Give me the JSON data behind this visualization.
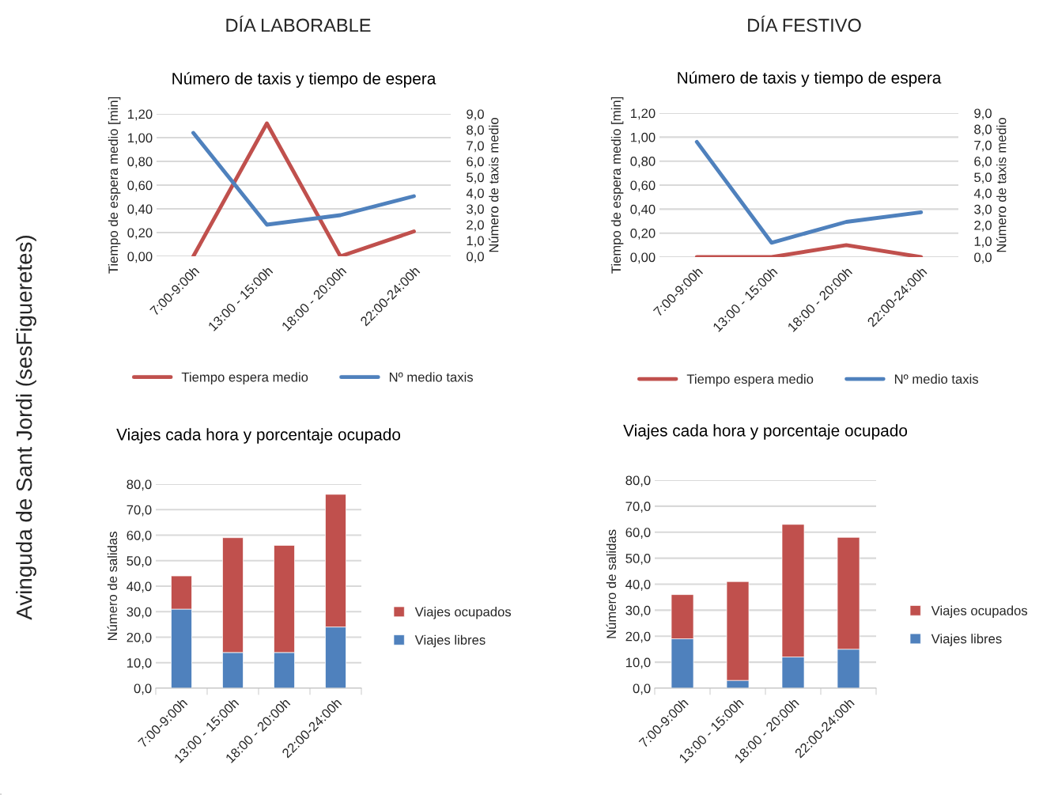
{
  "chart_data": [
    {
      "type": "line",
      "title": "Número de taxis y tiempo de espera",
      "ylabel": "Tiempo de espera medio [min]",
      "y2label": "Número de taxis medio",
      "annotations": [
        "DÍA LABORABLE",
        "Avinguda de Sant Jordi (sesFigueretes)"
      ],
      "categories": [
        "7:00-9:00h",
        "13:00 - 15:00h",
        "18:00 - 20:00h",
        "22:00-24:00h"
      ],
      "series": [
        {
          "name": "Tiempo espera medio",
          "color": "#c0504d",
          "values": [
            0,
            1.12,
            0,
            0.21
          ]
        },
        {
          "name": "Nº medio taxis",
          "color": "#4f81bd",
          "axis": "y2",
          "values": [
            7.8,
            2.0,
            2.6,
            3.8
          ]
        }
      ],
      "ylim": [
        0,
        1.2
      ],
      "yticks": [
        {
          "value": 0,
          "label": "0,00"
        },
        {
          "value": 0.2,
          "label": "0,20"
        },
        {
          "value": 0.4,
          "label": "0,40"
        },
        {
          "value": 0.6,
          "label": "0,60"
        },
        {
          "value": 0.8,
          "label": "0,80"
        },
        {
          "value": 1.0,
          "label": "1,00"
        },
        {
          "value": 1.2,
          "label": "1,20"
        }
      ],
      "y2lim": [
        0,
        9
      ],
      "y2ticks": [
        {
          "value": 0,
          "label": "0,0"
        },
        {
          "value": 1,
          "label": "1,0"
        },
        {
          "value": 2,
          "label": "2,0"
        },
        {
          "value": 3,
          "label": "3,0"
        },
        {
          "value": 4,
          "label": "4,0"
        },
        {
          "value": 5,
          "label": "5,0"
        },
        {
          "value": 6,
          "label": "6,0"
        },
        {
          "value": 7,
          "label": "7,0"
        },
        {
          "value": 8,
          "label": "8,0"
        },
        {
          "value": 9,
          "label": "9,0"
        }
      ],
      "grid": "y",
      "legend": "bottom",
      "line_style": "solid"
    },
    {
      "type": "line",
      "title": "Número de taxis y tiempo de espera",
      "ylabel": "Tiempo de espera medio [min]",
      "y2label": "Número de taxis medio",
      "annotations": [
        "DÍA FESTIVO"
      ],
      "categories": [
        "7:00-9:00h",
        "13:00 - 15:00h",
        "18:00 - 20:00h",
        "22:00-24:00h"
      ],
      "series": [
        {
          "name": "Tiempo espera medio",
          "color": "#c0504d",
          "values": [
            0,
            0,
            0.1,
            0
          ]
        },
        {
          "name": "Nº medio taxis",
          "color": "#4f81bd",
          "axis": "y2",
          "values": [
            7.2,
            0.9,
            2.2,
            2.8
          ]
        }
      ],
      "ylim": [
        0,
        1.2
      ],
      "yticks": [
        {
          "value": 0,
          "label": "0,00"
        },
        {
          "value": 0.2,
          "label": "0,20"
        },
        {
          "value": 0.4,
          "label": "0,40"
        },
        {
          "value": 0.6,
          "label": "0,60"
        },
        {
          "value": 0.8,
          "label": "0,80"
        },
        {
          "value": 1.0,
          "label": "1,00"
        },
        {
          "value": 1.2,
          "label": "1,20"
        }
      ],
      "y2lim": [
        0,
        9
      ],
      "y2ticks": [
        {
          "value": 0,
          "label": "0,0"
        },
        {
          "value": 1,
          "label": "1,0"
        },
        {
          "value": 2,
          "label": "2,0"
        },
        {
          "value": 3,
          "label": "3,0"
        },
        {
          "value": 4,
          "label": "4,0"
        },
        {
          "value": 5,
          "label": "5,0"
        },
        {
          "value": 6,
          "label": "6,0"
        },
        {
          "value": 7,
          "label": "7,0"
        },
        {
          "value": 8,
          "label": "8,0"
        },
        {
          "value": 9,
          "label": "9,0"
        }
      ],
      "grid": "y",
      "legend": "bottom",
      "line_style": "solid"
    },
    {
      "type": "bar",
      "stacked": true,
      "title": "Viajes cada hora y porcentaje ocupado",
      "ylabel": "Número de salidas",
      "categories": [
        "7:00-9:00h",
        "13:00 - 15:00h",
        "18:00 - 20:00h",
        "22:00-24:00h"
      ],
      "series": [
        {
          "name": "Viajes libres",
          "color": "#4f81bd",
          "values": [
            31,
            14,
            14,
            24
          ]
        },
        {
          "name": "Viajes ocupados",
          "color": "#c0504d",
          "values": [
            13,
            45,
            42,
            52
          ]
        }
      ],
      "ylim": [
        0,
        80
      ],
      "yticks": [
        {
          "value": 0,
          "label": "0,0"
        },
        {
          "value": 10,
          "label": "10,0"
        },
        {
          "value": 20,
          "label": "20,0"
        },
        {
          "value": 30,
          "label": "30,0"
        },
        {
          "value": 40,
          "label": "40,0"
        },
        {
          "value": 50,
          "label": "50,0"
        },
        {
          "value": 60,
          "label": "60,0"
        },
        {
          "value": 70,
          "label": "70,0"
        },
        {
          "value": 80,
          "label": "80,0"
        }
      ],
      "grid": "y",
      "legend": "right"
    },
    {
      "type": "bar",
      "stacked": true,
      "title": "Viajes cada hora y porcentaje ocupado",
      "ylabel": "Número de salidas",
      "categories": [
        "7:00-9:00h",
        "13:00 - 15:00h",
        "18:00 - 20:00h",
        "22:00-24:00h"
      ],
      "series": [
        {
          "name": "Viajes libres",
          "color": "#4f81bd",
          "values": [
            19,
            3,
            12,
            15
          ]
        },
        {
          "name": "Viajes ocupados",
          "color": "#c0504d",
          "values": [
            17,
            38,
            51,
            43
          ]
        }
      ],
      "ylim": [
        0,
        80
      ],
      "yticks": [
        {
          "value": 0,
          "label": "0,0"
        },
        {
          "value": 10,
          "label": "10,0"
        },
        {
          "value": 20,
          "label": "20,0"
        },
        {
          "value": 30,
          "label": "30,0"
        },
        {
          "value": 40,
          "label": "40,0"
        },
        {
          "value": 50,
          "label": "50,0"
        },
        {
          "value": 60,
          "label": "60,0"
        },
        {
          "value": 70,
          "label": "70,0"
        },
        {
          "value": 80,
          "label": "80,0"
        }
      ],
      "grid": "y",
      "legend": "right"
    }
  ]
}
